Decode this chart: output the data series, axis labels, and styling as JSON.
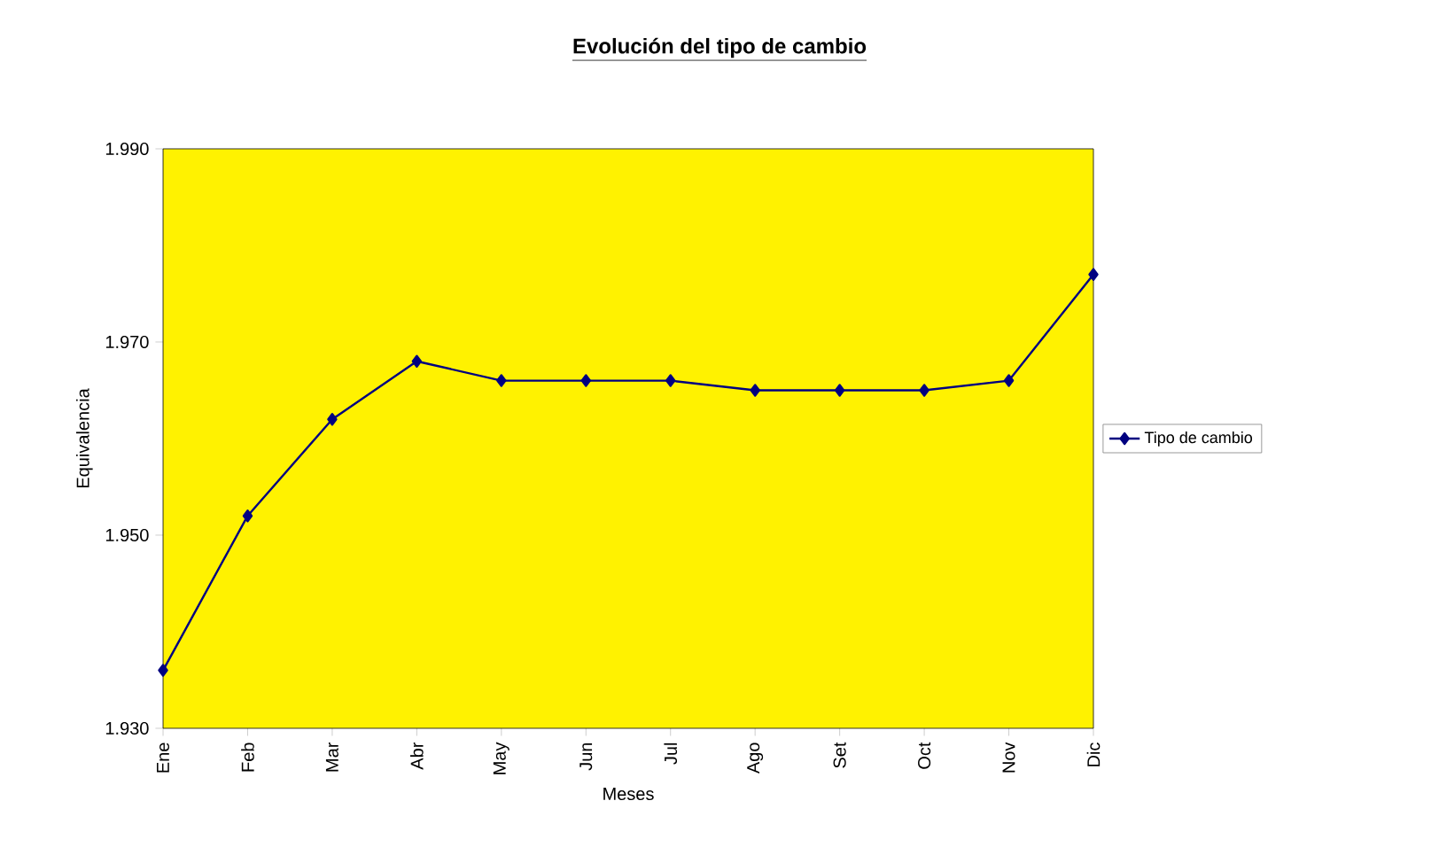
{
  "chart_data": {
    "type": "line",
    "title": "Evolución del tipo de cambio",
    "xlabel": "Meses",
    "ylabel": "Equivalencia",
    "categories": [
      "Ene",
      "Feb",
      "Mar",
      "Abr",
      "May",
      "Jun",
      "Jul",
      "Ago",
      "Set",
      "Oct",
      "Nov",
      "Dic"
    ],
    "series": [
      {
        "name": "Tipo de cambio",
        "color": "#000080",
        "values": [
          1.936,
          1.952,
          1.962,
          1.968,
          1.966,
          1.966,
          1.966,
          1.965,
          1.965,
          1.965,
          1.966,
          1.977
        ]
      }
    ],
    "ylim": [
      1.93,
      1.99
    ],
    "yticks": [
      {
        "value": 1.93,
        "label": "1.930"
      },
      {
        "value": 1.95,
        "label": "1.950"
      },
      {
        "value": 1.97,
        "label": "1.970"
      },
      {
        "value": 1.99,
        "label": "1.990"
      }
    ],
    "grid": false,
    "legend": "right",
    "marker": "diamond",
    "line_style": "solid"
  }
}
